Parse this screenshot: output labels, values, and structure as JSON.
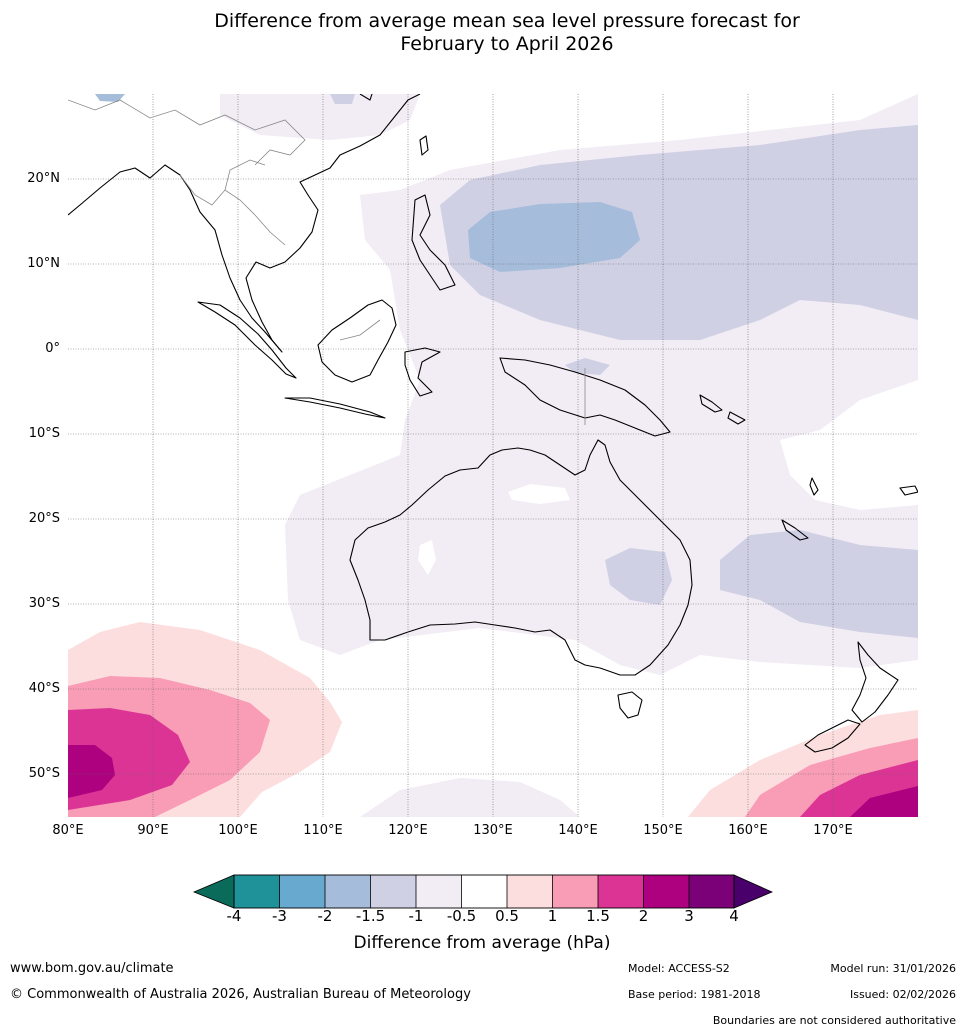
{
  "title": {
    "line1": "Difference from average mean sea level pressure forecast for",
    "line2": "February to April 2026"
  },
  "map": {
    "lat_labels": [
      "20°N",
      "10°N",
      "0°",
      "10°S",
      "20°S",
      "30°S",
      "40°S",
      "50°S"
    ],
    "lon_labels": [
      "80°E",
      "90°E",
      "100°E",
      "110°E",
      "120°E",
      "130°E",
      "140°E",
      "150°E",
      "160°E",
      "170°E"
    ],
    "extent": {
      "lon_min": 80,
      "lon_max": 180,
      "lat_min": -55,
      "lat_max": 30
    }
  },
  "legend": {
    "title": "Difference from average (hPa)",
    "ticks": [
      "-4",
      "-3",
      "-2",
      "-1.5",
      "-1",
      "-0.5",
      "0.5",
      "1",
      "1.5",
      "2",
      "3",
      "4"
    ],
    "colors": {
      "lt_m4": "#0b6b5a",
      "m4_m3": "#1f9199",
      "m3_m2": "#68a9d0",
      "m2_m15": "#a6bcdb",
      "m15_m1": "#cfd0e4",
      "m1_m05": "#f2ecf5",
      "m05_05": "#ffffff",
      "p05_1": "#fddede",
      "p1_15": "#f99cb6",
      "p15_2": "#dc3494",
      "p2_3": "#ad017f",
      "p3_4": "#7a0177",
      "gt_4": "#4a006a"
    }
  },
  "footer": {
    "website": "www.bom.gov.au/climate",
    "copyright": "© Commonwealth of Australia 2026, Australian Bureau of Meteorology",
    "model": "Model: ACCESS-S2",
    "base_period": "Base period: 1981-2018",
    "model_run": "Model run: 31/01/2026",
    "issued": "Issued: 02/02/2026",
    "disclaimer": "Boundaries are not considered authoritative"
  }
}
